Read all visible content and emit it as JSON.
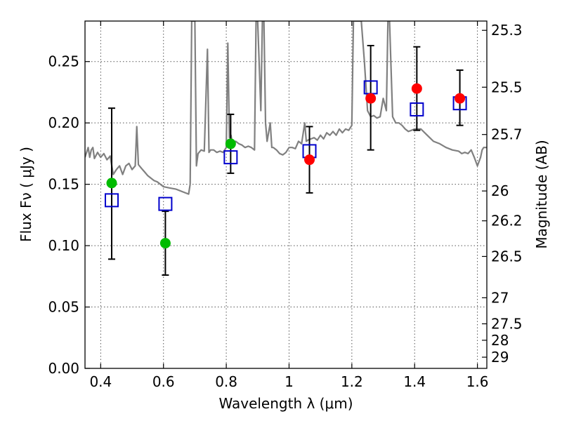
{
  "chart_data": {
    "type": "scatter",
    "title": "",
    "xlabel": "Wavelength  λ (μm)",
    "ylabel": "Flux  Fν  ( μJy )",
    "ylabel_right": "Magnitude (AB)",
    "xlim": [
      0.35,
      1.63
    ],
    "ylim": [
      0.0,
      0.283
    ],
    "grid": true,
    "x_ticks": [
      {
        "value": 0.4,
        "label": "0.4"
      },
      {
        "value": 0.6,
        "label": "0.6"
      },
      {
        "value": 0.8,
        "label": "0.8"
      },
      {
        "value": 1.0,
        "label": "1"
      },
      {
        "value": 1.2,
        "label": "1.2"
      },
      {
        "value": 1.4,
        "label": "1.4"
      },
      {
        "value": 1.6,
        "label": "1.6"
      }
    ],
    "y_ticks": [
      {
        "value": 0.0,
        "label": "0.00"
      },
      {
        "value": 0.05,
        "label": "0.05"
      },
      {
        "value": 0.1,
        "label": "0.10"
      },
      {
        "value": 0.15,
        "label": "0.15"
      },
      {
        "value": 0.2,
        "label": "0.20"
      },
      {
        "value": 0.25,
        "label": "0.25"
      }
    ],
    "right_ticks": [
      {
        "mag": 25.3,
        "label": "25.3"
      },
      {
        "mag": 25.5,
        "label": "25.5"
      },
      {
        "mag": 25.7,
        "label": "25.7"
      },
      {
        "mag": 26.0,
        "label": "26"
      },
      {
        "mag": 26.2,
        "label": "26.2"
      },
      {
        "mag": 26.5,
        "label": "26.5"
      },
      {
        "mag": 27.0,
        "label": "27"
      },
      {
        "mag": 27.5,
        "label": "27.5"
      },
      {
        "mag": 28.0,
        "label": "28"
      },
      {
        "mag": 29.0,
        "label": "29"
      }
    ],
    "template_spectrum": {
      "color": "#808080",
      "points": [
        [
          0.35,
          0.172
        ],
        [
          0.36,
          0.18
        ],
        [
          0.365,
          0.172
        ],
        [
          0.37,
          0.178
        ],
        [
          0.375,
          0.18
        ],
        [
          0.38,
          0.171
        ],
        [
          0.39,
          0.176
        ],
        [
          0.4,
          0.172
        ],
        [
          0.41,
          0.175
        ],
        [
          0.42,
          0.17
        ],
        [
          0.43,
          0.173
        ],
        [
          0.44,
          0.158
        ],
        [
          0.45,
          0.162
        ],
        [
          0.46,
          0.165
        ],
        [
          0.47,
          0.158
        ],
        [
          0.48,
          0.165
        ],
        [
          0.49,
          0.167
        ],
        [
          0.5,
          0.162
        ],
        [
          0.51,
          0.165
        ],
        [
          0.515,
          0.197
        ],
        [
          0.52,
          0.166
        ],
        [
          0.53,
          0.163
        ],
        [
          0.54,
          0.16
        ],
        [
          0.55,
          0.157
        ],
        [
          0.56,
          0.155
        ],
        [
          0.57,
          0.153
        ],
        [
          0.58,
          0.152
        ],
        [
          0.59,
          0.15
        ],
        [
          0.6,
          0.148
        ],
        [
          0.62,
          0.147
        ],
        [
          0.64,
          0.146
        ],
        [
          0.66,
          0.144
        ],
        [
          0.67,
          0.143
        ],
        [
          0.68,
          0.142
        ],
        [
          0.685,
          0.15
        ],
        [
          0.69,
          0.283
        ],
        [
          0.7,
          0.283
        ],
        [
          0.705,
          0.165
        ],
        [
          0.71,
          0.175
        ],
        [
          0.72,
          0.178
        ],
        [
          0.73,
          0.177
        ],
        [
          0.74,
          0.26
        ],
        [
          0.745,
          0.176
        ],
        [
          0.75,
          0.178
        ],
        [
          0.76,
          0.178
        ],
        [
          0.77,
          0.176
        ],
        [
          0.78,
          0.177
        ],
        [
          0.79,
          0.176
        ],
        [
          0.8,
          0.18
        ],
        [
          0.805,
          0.265
        ],
        [
          0.81,
          0.188
        ],
        [
          0.815,
          0.19
        ],
        [
          0.82,
          0.182
        ],
        [
          0.83,
          0.185
        ],
        [
          0.84,
          0.183
        ],
        [
          0.85,
          0.182
        ],
        [
          0.86,
          0.18
        ],
        [
          0.87,
          0.181
        ],
        [
          0.88,
          0.18
        ],
        [
          0.89,
          0.178
        ],
        [
          0.895,
          0.283
        ],
        [
          0.9,
          0.283
        ],
        [
          0.91,
          0.21
        ],
        [
          0.915,
          0.283
        ],
        [
          0.92,
          0.283
        ],
        [
          0.925,
          0.2
        ],
        [
          0.93,
          0.185
        ],
        [
          0.94,
          0.2
        ],
        [
          0.945,
          0.18
        ],
        [
          0.95,
          0.18
        ],
        [
          0.96,
          0.178
        ],
        [
          0.97,
          0.175
        ],
        [
          0.98,
          0.174
        ],
        [
          0.99,
          0.176
        ],
        [
          1.0,
          0.18
        ],
        [
          1.01,
          0.18
        ],
        [
          1.02,
          0.179
        ],
        [
          1.03,
          0.185
        ],
        [
          1.04,
          0.183
        ],
        [
          1.05,
          0.2
        ],
        [
          1.055,
          0.185
        ],
        [
          1.06,
          0.186
        ],
        [
          1.07,
          0.187
        ],
        [
          1.08,
          0.188
        ],
        [
          1.09,
          0.186
        ],
        [
          1.1,
          0.19
        ],
        [
          1.11,
          0.187
        ],
        [
          1.12,
          0.192
        ],
        [
          1.13,
          0.19
        ],
        [
          1.14,
          0.193
        ],
        [
          1.15,
          0.19
        ],
        [
          1.16,
          0.195
        ],
        [
          1.17,
          0.192
        ],
        [
          1.18,
          0.195
        ],
        [
          1.19,
          0.194
        ],
        [
          1.2,
          0.198
        ],
        [
          1.205,
          0.283
        ],
        [
          1.22,
          0.283
        ],
        [
          1.23,
          0.283
        ],
        [
          1.24,
          0.25
        ],
        [
          1.25,
          0.21
        ],
        [
          1.26,
          0.205
        ],
        [
          1.27,
          0.206
        ],
        [
          1.28,
          0.204
        ],
        [
          1.29,
          0.205
        ],
        [
          1.3,
          0.22
        ],
        [
          1.31,
          0.21
        ],
        [
          1.315,
          0.283
        ],
        [
          1.32,
          0.283
        ],
        [
          1.33,
          0.205
        ],
        [
          1.34,
          0.2
        ],
        [
          1.35,
          0.2
        ],
        [
          1.36,
          0.198
        ],
        [
          1.37,
          0.195
        ],
        [
          1.38,
          0.193
        ],
        [
          1.39,
          0.194
        ],
        [
          1.4,
          0.195
        ],
        [
          1.42,
          0.195
        ],
        [
          1.44,
          0.19
        ],
        [
          1.46,
          0.185
        ],
        [
          1.48,
          0.183
        ],
        [
          1.5,
          0.18
        ],
        [
          1.52,
          0.178
        ],
        [
          1.54,
          0.177
        ],
        [
          1.55,
          0.175
        ],
        [
          1.56,
          0.176
        ],
        [
          1.57,
          0.175
        ],
        [
          1.58,
          0.178
        ],
        [
          1.59,
          0.172
        ],
        [
          1.6,
          0.165
        ],
        [
          1.61,
          0.172
        ],
        [
          1.615,
          0.178
        ],
        [
          1.62,
          0.18
        ],
        [
          1.63,
          0.18
        ]
      ]
    },
    "series": [
      {
        "marker": "circle",
        "color": "#00bb00",
        "points": [
          {
            "x": 0.435,
            "y": 0.151
          },
          {
            "x": 0.606,
            "y": 0.102
          },
          {
            "x": 0.814,
            "y": 0.183
          }
        ]
      },
      {
        "marker": "circle",
        "color": "#ff0000",
        "points": [
          {
            "x": 1.065,
            "y": 0.17
          },
          {
            "x": 1.26,
            "y": 0.22
          },
          {
            "x": 1.407,
            "y": 0.228
          },
          {
            "x": 1.544,
            "y": 0.22
          }
        ]
      },
      {
        "marker": "open-square",
        "color": "#0000cc",
        "points": [
          {
            "x": 0.435,
            "y": 0.137
          },
          {
            "x": 0.606,
            "y": 0.134
          },
          {
            "x": 0.814,
            "y": 0.172
          },
          {
            "x": 1.065,
            "y": 0.177
          },
          {
            "x": 1.26,
            "y": 0.229
          },
          {
            "x": 1.407,
            "y": 0.211
          },
          {
            "x": 1.544,
            "y": 0.216
          }
        ]
      }
    ],
    "error_bars": [
      {
        "x": 0.435,
        "low": 0.089,
        "high": 0.212
      },
      {
        "x": 0.606,
        "low": 0.076,
        "high": 0.128
      },
      {
        "x": 0.814,
        "low": 0.159,
        "high": 0.207
      },
      {
        "x": 1.065,
        "low": 0.143,
        "high": 0.197
      },
      {
        "x": 1.26,
        "low": 0.178,
        "high": 0.263
      },
      {
        "x": 1.407,
        "low": 0.194,
        "high": 0.262
      },
      {
        "x": 1.544,
        "low": 0.198,
        "high": 0.243
      }
    ],
    "colors": {
      "errorbar": "#000000",
      "frame": "#000000",
      "grid": "#555555"
    }
  }
}
